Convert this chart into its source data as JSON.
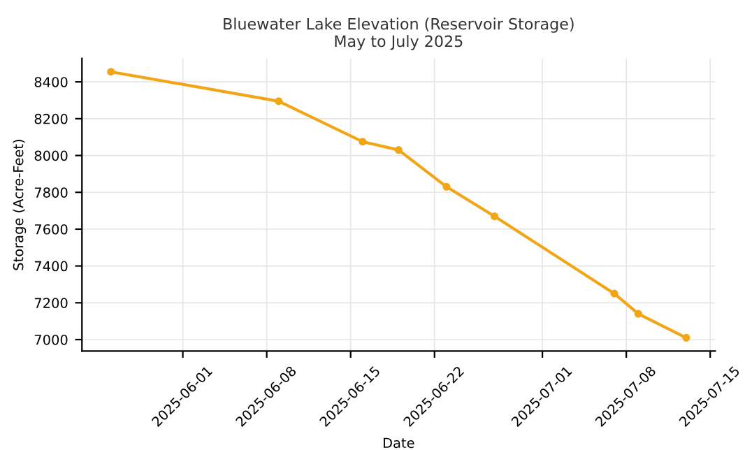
{
  "chart_data": {
    "type": "line",
    "title": "Bluewater Lake Elevation (Reservoir Storage)\nMay to July 2025",
    "xlabel": "Date",
    "ylabel": "Storage (Acre-Feet)",
    "x": [
      "2025-05-26",
      "2025-06-09",
      "2025-06-16",
      "2025-06-19",
      "2025-06-23",
      "2025-06-27",
      "2025-07-07",
      "2025-07-09",
      "2025-07-13"
    ],
    "series": [
      {
        "color": "#f2a516",
        "values": [
          8455,
          8295,
          8075,
          8030,
          7830,
          7670,
          7250,
          7140,
          7010
        ]
      }
    ],
    "xlim": [
      "2025-05-23T14:00",
      "2025-07-15T10:00"
    ],
    "ylim": [
      6938,
      8527
    ],
    "xticks": [
      "2025-06-01",
      "2025-06-08",
      "2025-06-15",
      "2025-06-22",
      "2025-07-01",
      "2025-07-08",
      "2025-07-15"
    ],
    "yticks": [
      7000,
      7200,
      7400,
      7600,
      7800,
      8000,
      8200,
      8400
    ],
    "grid": true,
    "marker": "circle",
    "line_style": "solid"
  }
}
